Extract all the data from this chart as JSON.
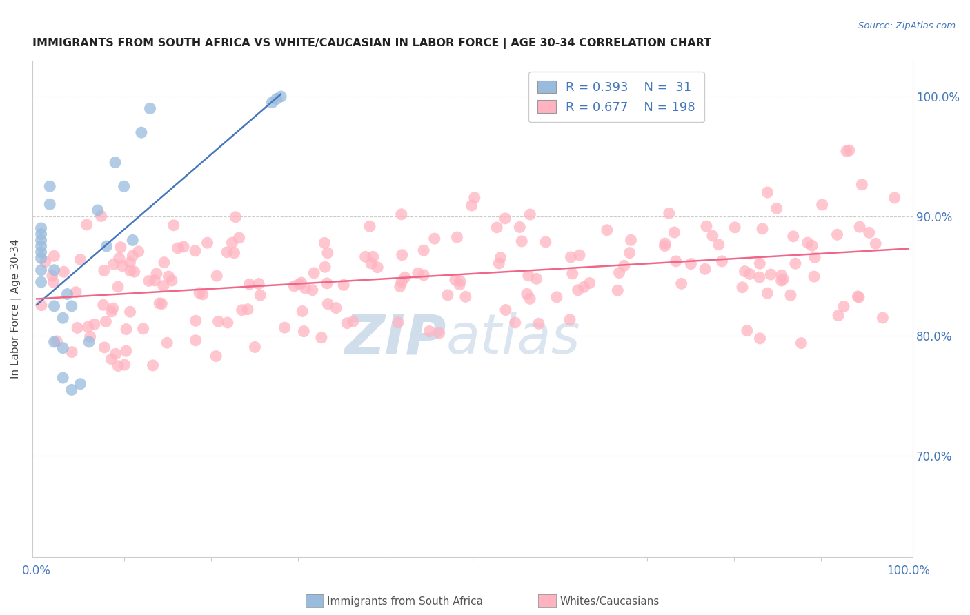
{
  "title": "IMMIGRANTS FROM SOUTH AFRICA VS WHITE/CAUCASIAN IN LABOR FORCE | AGE 30-34 CORRELATION CHART",
  "source": "Source: ZipAtlas.com",
  "ylabel": "In Labor Force | Age 30-34",
  "ytick_labels": [
    "70.0%",
    "80.0%",
    "90.0%",
    "100.0%"
  ],
  "ytick_values": [
    0.7,
    0.8,
    0.9,
    1.0
  ],
  "ylim": [
    0.615,
    1.03
  ],
  "xlim": [
    -0.005,
    1.005
  ],
  "blue_R": 0.393,
  "blue_N": 31,
  "pink_R": 0.677,
  "pink_N": 198,
  "blue_color": "#99BBDD",
  "pink_color": "#FFB3C1",
  "blue_line_color": "#4477BB",
  "pink_line_color": "#EE6688",
  "watermark_zip": "ZIP",
  "watermark_atlas": "atlas",
  "legend_label_blue": "Immigrants from South Africa",
  "legend_label_pink": "Whites/Caucasians",
  "blue_line_x0": 0.0,
  "blue_line_y0": 0.826,
  "blue_line_x1": 0.28,
  "blue_line_y1": 1.002,
  "pink_line_x0": 0.0,
  "pink_line_y0": 0.831,
  "pink_line_x1": 1.0,
  "pink_line_y1": 0.873
}
